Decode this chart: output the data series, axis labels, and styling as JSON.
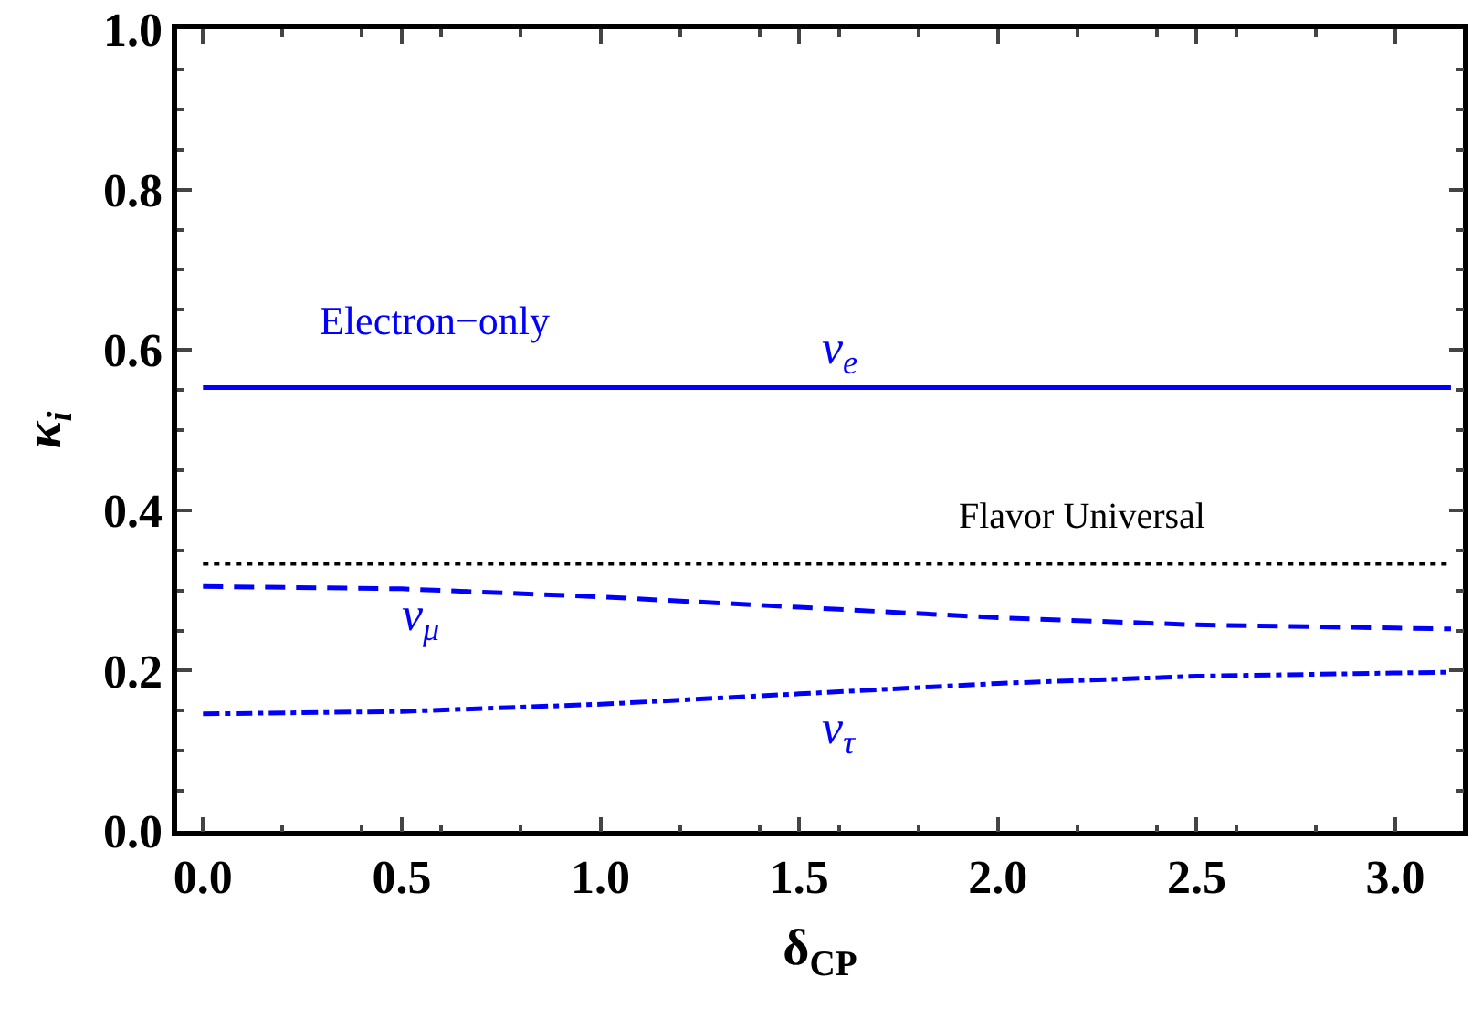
{
  "chart_data": {
    "type": "line",
    "xlabel": "δ$_{CP}$",
    "ylabel": "κ$_{i}$",
    "xlim": [
      -0.065,
      3.17
    ],
    "xticks": [
      {
        "value": 0,
        "label": "0.0"
      },
      0.5,
      {
        "value": 1,
        "label": "1.0"
      },
      1.5,
      {
        "value": 2,
        "label": "2.0"
      },
      2.5,
      {
        "value": 3,
        "label": "3.0"
      }
    ],
    "ylim": [
      0,
      1
    ],
    "yticks": [
      {
        "value": 0,
        "label": "0.0"
      },
      0.2,
      0.4,
      0.6,
      0.8,
      {
        "value": 1,
        "label": "1.0"
      }
    ],
    "marker": "none",
    "x": [
      0,
      0.5,
      1,
      1.5,
      2,
      2.5,
      3,
      3.14
    ],
    "series": [
      {
        "color": "#0000ff",
        "line_style": "solid",
        "values": [
          0.553,
          0.553,
          0.553,
          0.553,
          0.553,
          0.553,
          0.553,
          0.553
        ]
      },
      {
        "color": "#0000ff",
        "line_style": "dashed",
        "values": [
          0.305,
          0.302,
          0.292,
          0.279,
          0.266,
          0.257,
          0.253,
          0.252
        ]
      },
      {
        "color": "#0000ff",
        "line_style": "dashdot",
        "values": [
          0.146,
          0.149,
          0.158,
          0.171,
          0.184,
          0.193,
          0.197,
          0.198
        ]
      }
    ],
    "ref_lines": [
      {
        "axis": "y",
        "value": 0.333,
        "label": "Flavor Universal",
        "color": "#000000",
        "line_style": "dotted"
      }
    ],
    "annotations": [
      "Electron−only",
      "ν$_{e}$",
      "ν$_{μ}$",
      "ν$_{τ}$"
    ]
  }
}
